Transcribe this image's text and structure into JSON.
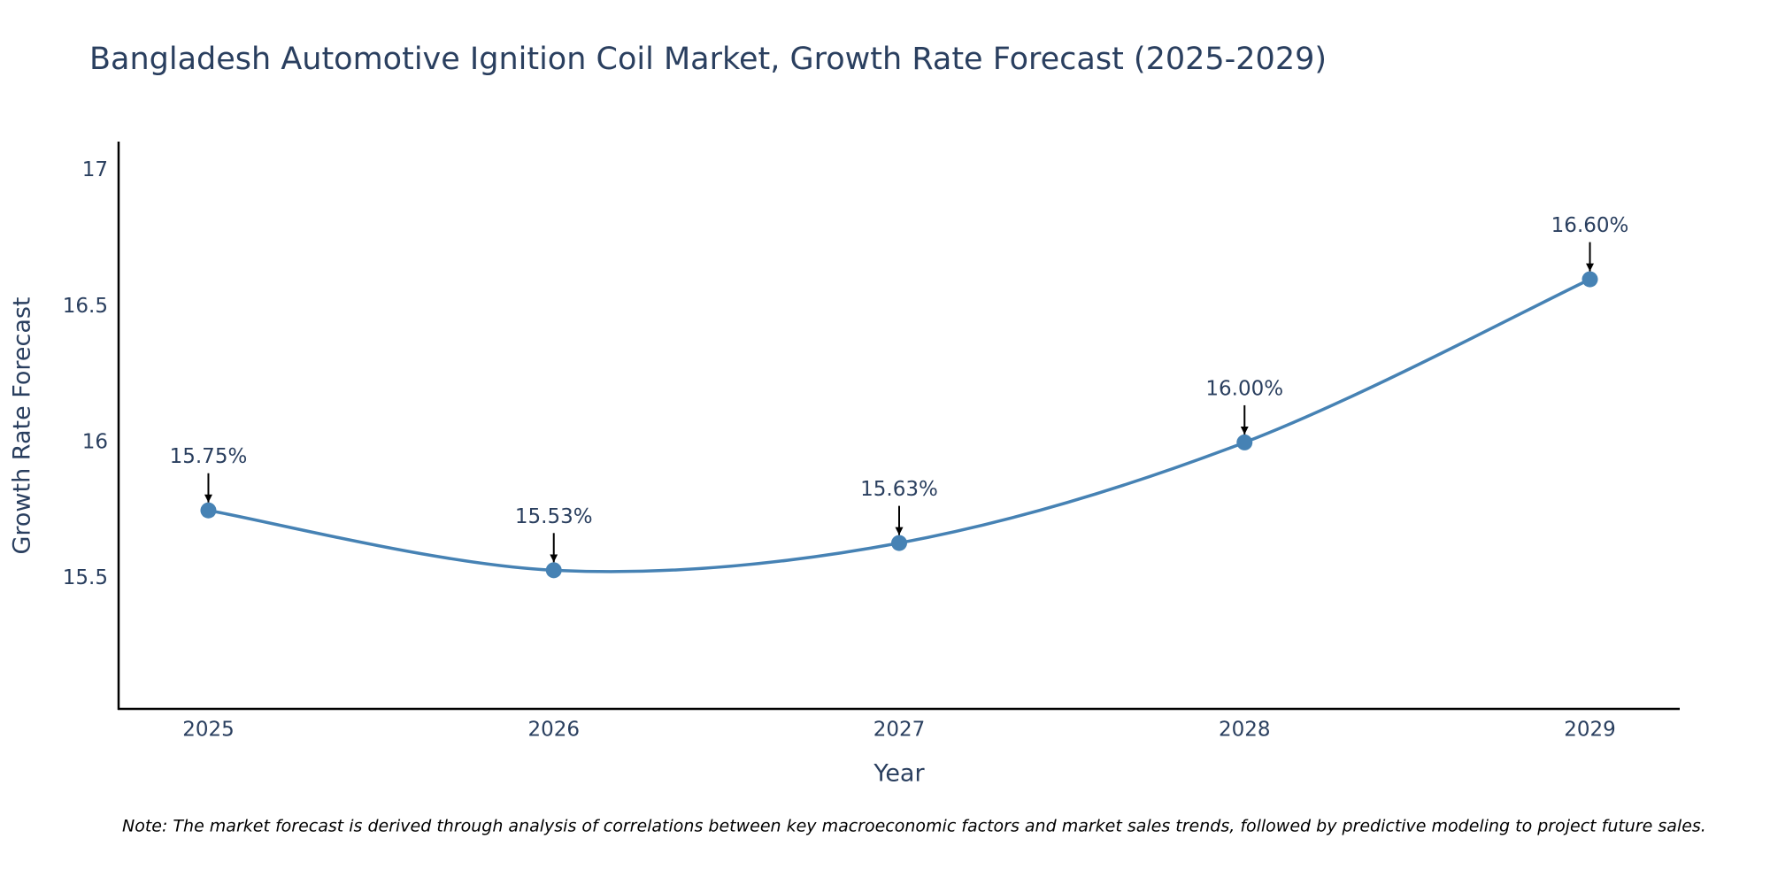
{
  "chart_data": {
    "type": "line",
    "title": "Bangladesh Automotive Ignition Coil Market, Growth Rate Forecast (2025-2029)",
    "x_label": "Year",
    "y_label": "Growth Rate Forecast",
    "note": "Note: The market forecast is derived through analysis of correlations between key macroeconomic factors and market sales trends, followed by predictive modeling to project future sales.",
    "x": [
      2025,
      2026,
      2027,
      2028,
      2029
    ],
    "series": [
      {
        "color": "#4682b4",
        "values": [
          15.75,
          15.53,
          15.63,
          16.0,
          16.6
        ],
        "value_labels": [
          "15.75%",
          "15.53%",
          "15.63%",
          "16.00%",
          "16.60%"
        ]
      }
    ],
    "xlim": [
      2024.74,
      2029.26
    ],
    "xticks": [
      2025,
      2026,
      2027,
      2028,
      2029
    ],
    "ylim": [
      15.02,
      17.1
    ],
    "yticks": [
      15.5,
      16,
      16.5,
      17
    ],
    "grid": false,
    "smooth": true
  }
}
